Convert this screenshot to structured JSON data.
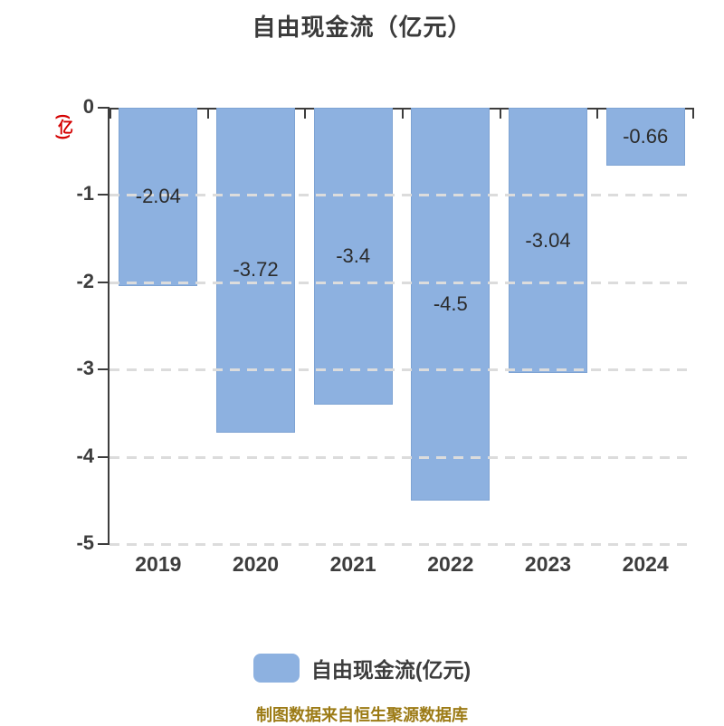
{
  "title": "自由现金流（亿元）",
  "footer_note": "制图数据来自恒生聚源数据库",
  "legend": {
    "label": "自由现金流(亿元)",
    "swatch_color": "#8DB1E0"
  },
  "colors": {
    "bar_fill": "#8DB1E0",
    "bar_border": "#7EA3D3",
    "axis": "#3d3d3d",
    "title_text": "#3a3a3a",
    "ylabel_text": "#d40000",
    "gridline": "#dcdcdc",
    "footer_text": "#9c7b16"
  },
  "chart_data": {
    "type": "bar",
    "title": "自由现金流（亿元）",
    "xlabel": "",
    "ylabel": "(亿)",
    "categories": [
      "2019",
      "2020",
      "2021",
      "2022",
      "2023",
      "2024"
    ],
    "values": [
      -2.04,
      -3.72,
      -3.4,
      -4.5,
      -3.04,
      -0.66
    ],
    "value_labels": [
      "-2.04",
      "-3.72",
      "-3.4",
      "-4.5",
      "-3.04",
      "-0.66"
    ],
    "series_name": "自由现金流(亿元)",
    "ylim": [
      -5,
      0
    ],
    "y_ticks": [
      0,
      -1,
      -2,
      -3,
      -4,
      -5
    ],
    "y_tick_labels": [
      "0",
      "-1",
      "-2",
      "-3",
      "-4",
      "-5"
    ],
    "grid": "horizontal-dashed",
    "legend_position": "bottom",
    "bar_color": "#8DB1E0"
  }
}
